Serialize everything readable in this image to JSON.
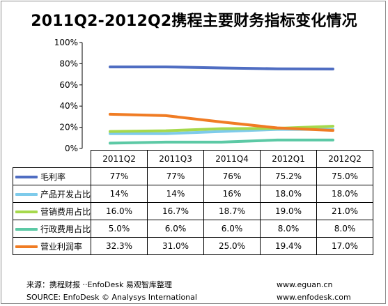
{
  "title": "2011Q2-2012Q2携程主要财务指标变化情况",
  "chart_data": {
    "type": "line",
    "title": "2011Q2-2012Q2携程主要财务指标变化情况",
    "categories": [
      "2011Q2",
      "2011Q3",
      "2011Q4",
      "2012Q1",
      "2012Q2"
    ],
    "yticks": [
      "0%",
      "20%",
      "40%",
      "60%",
      "80%",
      "100%"
    ],
    "ylim": [
      0,
      100
    ],
    "grid": false,
    "legend": "table-below",
    "series": [
      {
        "name": "毛利率",
        "color": "#4f6dc2",
        "values": [
          77,
          77,
          76,
          75.2,
          75.0
        ],
        "labels": [
          "77%",
          "77%",
          "76%",
          "75.2%",
          "75.0%"
        ]
      },
      {
        "name": "产品开发占比",
        "color": "#7ecbeb",
        "values": [
          14,
          14,
          16,
          18.0,
          18.0
        ],
        "labels": [
          "14%",
          "14%",
          "16%",
          "18.0%",
          "18.0%"
        ]
      },
      {
        "name": "营销费用占比",
        "color": "#a6d94c",
        "values": [
          16.0,
          16.7,
          18.7,
          19.0,
          21.0
        ],
        "labels": [
          "16.0%",
          "16.7%",
          "18.7%",
          "19.0%",
          "21.0%"
        ]
      },
      {
        "name": "行政费用占比",
        "color": "#5cc9a5",
        "values": [
          5.0,
          6.0,
          6.0,
          8.0,
          8.0
        ],
        "labels": [
          "5.0%",
          "6.0%",
          "6.0%",
          "8.0%",
          "8.0%"
        ]
      },
      {
        "name": "营业利润率",
        "color": "#f07c24",
        "values": [
          32.3,
          31.0,
          25.0,
          19.4,
          17.0
        ],
        "labels": [
          "32.3%",
          "31.0%",
          "25.0%",
          "19.4%",
          "17.0%"
        ]
      }
    ]
  },
  "footer": {
    "source_cn": "来源：携程财报  ··EnfoDesk 易观智库整理",
    "source_en": "SOURCE: EnfoDesk © Analysys International",
    "url1": "www.eguan.cn",
    "url2": "www.enfodesk.com"
  }
}
